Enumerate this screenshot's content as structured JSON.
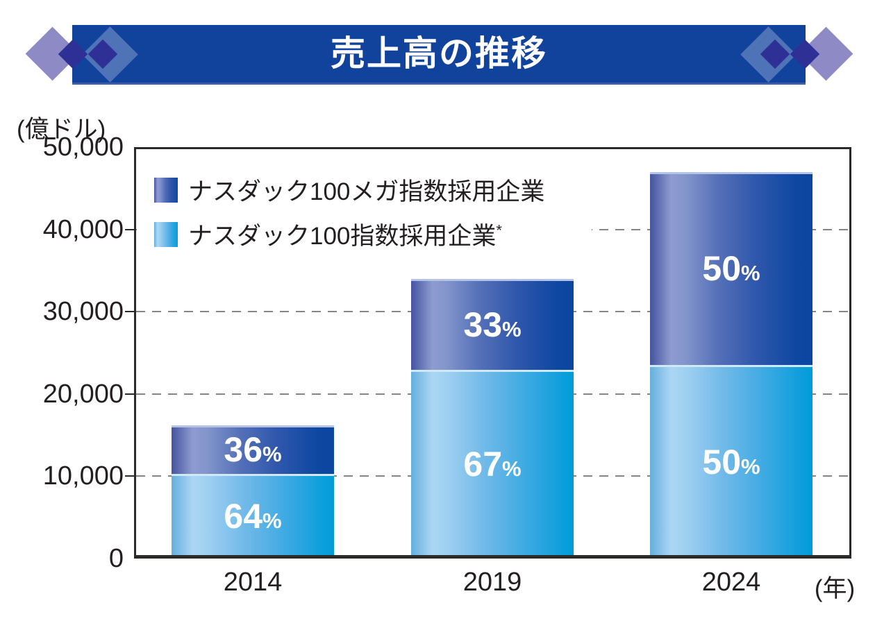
{
  "banner": {
    "title": "売上高の推移"
  },
  "axis": {
    "unit_y": "(億ドル)",
    "unit_x": "(年)"
  },
  "legend": {
    "items": [
      {
        "label": "ナスダック100メガ指数採用企業",
        "suffix": ""
      },
      {
        "label": "ナスダック100指数採用企業",
        "suffix": "*"
      }
    ]
  },
  "colors": {
    "banner_blue": "#12439c",
    "diamond_purple": "#8e8ac6",
    "diamond_light_blue": "#4e74b7",
    "diamond_dark_indigo": "#2e3095",
    "series_mega_main": "#1d4ea6",
    "series_n100_main": "#3fa9e0",
    "grid_gray": "#858585",
    "axis_dark": "#2b2a29",
    "text_dark": "#231f20",
    "label_white": "#ffffff"
  },
  "chart_data": {
    "type": "bar",
    "stacked": true,
    "title": "売上高の推移",
    "ylabel": "(億ドル)",
    "xlabel": "(年)",
    "ylim": [
      0,
      50000
    ],
    "grid": "dashed-horizontal",
    "legend_position": "top-left-inside",
    "categories": [
      "2014",
      "2019",
      "2024"
    ],
    "series": [
      {
        "name": "ナスダック100指数採用企業*",
        "stack_order": "bottom",
        "color_main": "#3fa9e0",
        "values": [
          10300,
          22900,
          23500
        ],
        "percent_labels": [
          "64",
          "67",
          "50"
        ]
      },
      {
        "name": "ナスダック100メガ指数採用企業",
        "stack_order": "top",
        "color_main": "#1d4ea6",
        "values": [
          5900,
          11100,
          23500
        ],
        "percent_labels": [
          "36",
          "33",
          "50"
        ]
      }
    ],
    "totals": [
      16200,
      34000,
      47000
    ],
    "y_ticks": [
      {
        "value": 0,
        "label": "0"
      },
      {
        "value": 10000,
        "label": "10,000"
      },
      {
        "value": 20000,
        "label": "20,000"
      },
      {
        "value": 30000,
        "label": "30,000"
      },
      {
        "value": 40000,
        "label": "40,000"
      },
      {
        "value": 50000,
        "label": "50,000"
      }
    ],
    "gridline_values": [
      10000,
      20000,
      30000,
      40000
    ]
  }
}
